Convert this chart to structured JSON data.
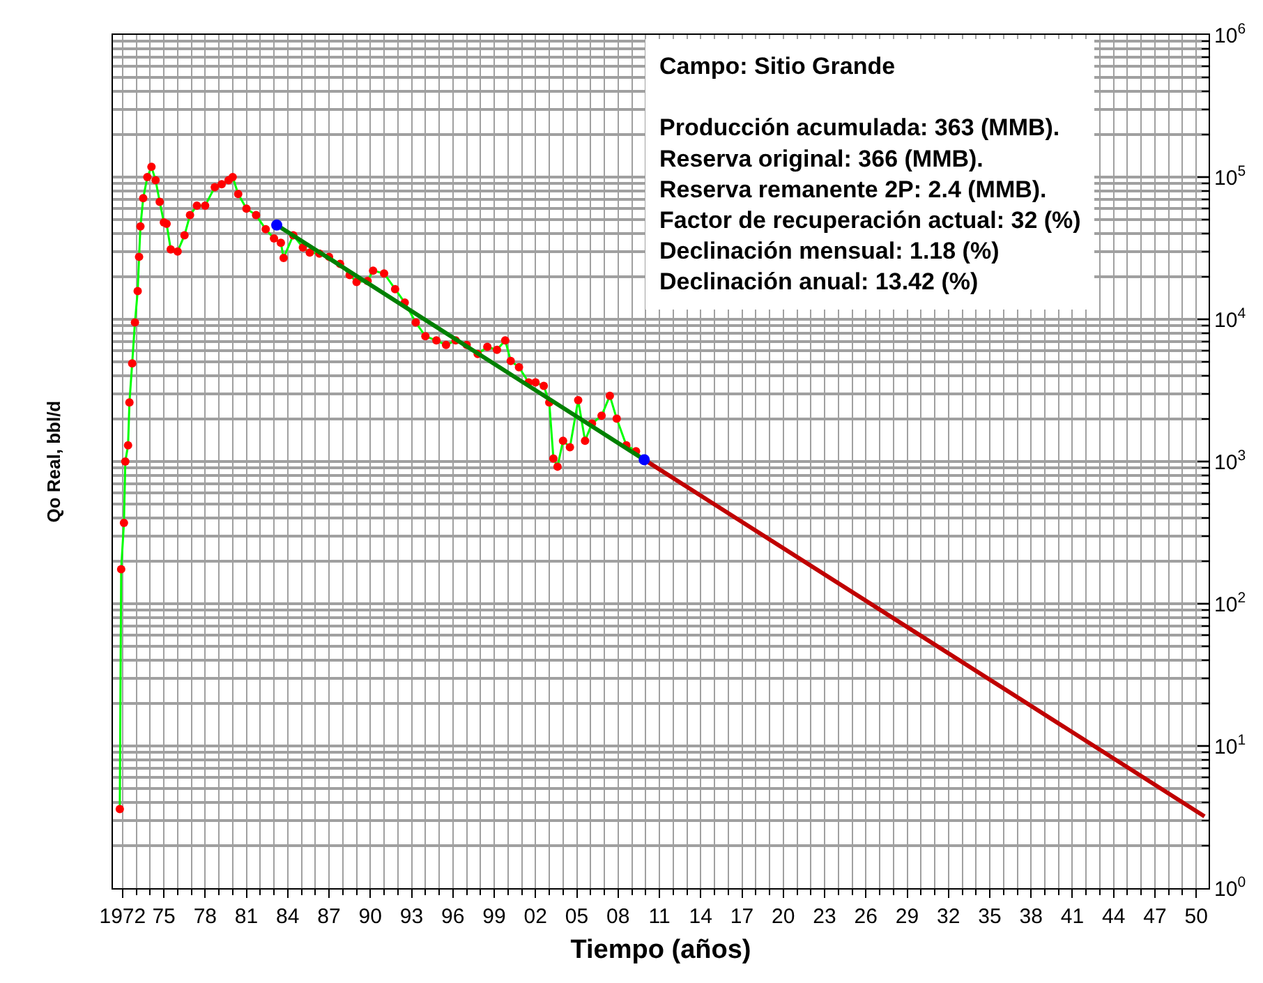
{
  "chart_data": {
    "type": "line",
    "xlabel": "Tiempo (años)",
    "ylabel": "Qo Real, bbl/d",
    "annotations": [
      "Campo: Sitio Grande",
      "Producción acumulada: 363 (MMB).",
      "Reserva original: 366 (MMB).",
      "Reserva remanente 2P: 2.4 (MMB).",
      "Factor de recuperación actual: 32 (%)",
      "Declinación mensual: 1.18 (%)",
      "Declinación anual: 13.42 (%)"
    ],
    "log": true,
    "grid": true,
    "xlim": [
      1971.3,
      2050.9
    ],
    "ylim": [
      1,
      1000000
    ],
    "xticks": [
      {
        "value": 1972,
        "label": "1972"
      },
      {
        "value": 1975,
        "label": "75"
      },
      {
        "value": 1978,
        "label": "78"
      },
      {
        "value": 1981,
        "label": "81"
      },
      {
        "value": 1984,
        "label": "84"
      },
      {
        "value": 1987,
        "label": "87"
      },
      {
        "value": 1990,
        "label": "90"
      },
      {
        "value": 1993,
        "label": "93"
      },
      {
        "value": 1996,
        "label": "96"
      },
      {
        "value": 1999,
        "label": "99"
      },
      {
        "value": 2002,
        "label": "02"
      },
      {
        "value": 2005,
        "label": "05"
      },
      {
        "value": 2008,
        "label": "08"
      },
      {
        "value": 2011,
        "label": "11"
      },
      {
        "value": 2014,
        "label": "14"
      },
      {
        "value": 2017,
        "label": "17"
      },
      {
        "value": 2020,
        "label": "20"
      },
      {
        "value": 2023,
        "label": "23"
      },
      {
        "value": 2026,
        "label": "26"
      },
      {
        "value": 2029,
        "label": "29"
      },
      {
        "value": 2032,
        "label": "32"
      },
      {
        "value": 2035,
        "label": "35"
      },
      {
        "value": 2038,
        "label": "38"
      },
      {
        "value": 2041,
        "label": "41"
      },
      {
        "value": 2044,
        "label": "44"
      },
      {
        "value": 2047,
        "label": "47"
      },
      {
        "value": 2050,
        "label": "50"
      }
    ],
    "yticks": [
      {
        "value": 1,
        "label": "10$^{0}$"
      },
      {
        "value": 10,
        "label": "10$^{1}$"
      },
      {
        "value": 100,
        "label": "10$^{2}$"
      },
      {
        "value": 1000,
        "label": "10$^{3}$"
      },
      {
        "value": 10000,
        "label": "10$^{4}$"
      },
      {
        "value": 100000,
        "label": "10$^{5}$"
      },
      {
        "value": 1000000,
        "label": "10$^{6}$"
      }
    ],
    "series": [
      {
        "color": "#00ff00",
        "marker": "none",
        "x": [
          1971.8,
          1971.9,
          1972.1,
          1972.2,
          1972.4,
          1972.5,
          1972.7,
          1972.9,
          1973.1,
          1973.2,
          1973.3,
          1973.5,
          1973.8,
          1974.1,
          1974.4,
          1974.7,
          1975.0,
          1975.2,
          1975.5,
          1976.0,
          1976.5,
          1976.9,
          1977.4,
          1978.0,
          1978.7,
          1979.2,
          1979.7,
          1980.0,
          1980.4,
          1981.0,
          1981.7,
          1982.4,
          1983.0,
          1983.5,
          1983.7,
          1984.4,
          1985.1,
          1985.6,
          1986.3,
          1987.0,
          1987.8,
          1988.5,
          1989.0,
          1989.8,
          1990.2,
          1991.0,
          1991.8,
          1992.5,
          1993.3,
          1994.0,
          1994.8,
          1995.5,
          1996.2,
          1997.0,
          1997.8,
          1998.5,
          1999.2,
          1999.8,
          2000.2,
          2000.8,
          2001.5,
          2002.0,
          2002.6,
          2003.0,
          2003.3,
          2003.6,
          2004.0,
          2004.5,
          2005.1,
          2005.6,
          2006.1,
          2006.8,
          2007.4,
          2007.9,
          2008.6,
          2009.3
        ],
        "values": [
          3.6,
          175,
          370,
          1000,
          1300,
          2600,
          4900,
          9500,
          15800,
          27500,
          45000,
          71000,
          100000,
          118000,
          95000,
          67000,
          48000,
          47000,
          31000,
          30000,
          39000,
          54000,
          63000,
          63000,
          85000,
          89000,
          95000,
          100000,
          76000,
          60000,
          54000,
          43000,
          37000,
          34500,
          27000,
          39000,
          32000,
          29500,
          29000,
          27500,
          24500,
          20500,
          18300,
          18600,
          22000,
          21000,
          16300,
          13100,
          9500,
          7600,
          7100,
          6600,
          7100,
          6600,
          5700,
          6400,
          6100,
          7100,
          5100,
          4600,
          3600,
          3600,
          3400,
          2600,
          1050,
          920,
          1400,
          1260,
          2700,
          1400,
          1850,
          2100,
          2900,
          2000,
          1300,
          1180
        ]
      },
      {
        "type": "scatter",
        "color": "#ff0000",
        "marker": "circle",
        "x": [
          1971.8,
          1971.9,
          1972.1,
          1972.2,
          1972.4,
          1972.5,
          1972.7,
          1972.9,
          1973.1,
          1973.2,
          1973.3,
          1973.5,
          1973.8,
          1974.1,
          1974.4,
          1974.7,
          1975.0,
          1975.2,
          1975.5,
          1976.0,
          1976.5,
          1976.9,
          1977.4,
          1978.0,
          1978.7,
          1979.2,
          1979.7,
          1980.0,
          1980.4,
          1981.0,
          1981.7,
          1982.4,
          1983.0,
          1983.5,
          1983.7,
          1984.4,
          1985.1,
          1985.6,
          1986.3,
          1987.0,
          1987.8,
          1988.5,
          1989.0,
          1989.8,
          1990.2,
          1991.0,
          1991.8,
          1992.5,
          1993.3,
          1994.0,
          1994.8,
          1995.5,
          1996.2,
          1997.0,
          1997.8,
          1998.5,
          1999.2,
          1999.8,
          2000.2,
          2000.8,
          2001.5,
          2002.0,
          2002.6,
          2003.0,
          2003.3,
          2003.6,
          2004.0,
          2004.5,
          2005.1,
          2005.6,
          2006.1,
          2006.8,
          2007.4,
          2007.9,
          2008.6,
          2009.3
        ],
        "values": [
          3.6,
          175,
          370,
          1000,
          1300,
          2600,
          4900,
          9500,
          15800,
          27500,
          45000,
          71000,
          100000,
          118000,
          95000,
          67000,
          48000,
          47000,
          31000,
          30000,
          39000,
          54000,
          63000,
          63000,
          85000,
          89000,
          95000,
          100000,
          76000,
          60000,
          54000,
          43000,
          37000,
          34500,
          27000,
          39000,
          32000,
          29500,
          29000,
          27500,
          24500,
          20500,
          18300,
          18600,
          22000,
          21000,
          16300,
          13100,
          9500,
          7600,
          7100,
          6600,
          7100,
          6600,
          5700,
          6400,
          6100,
          7100,
          5100,
          4600,
          3600,
          3600,
          3400,
          2600,
          1050,
          920,
          1400,
          1260,
          2700,
          1400,
          1850,
          2100,
          2900,
          2000,
          1300,
          1180
        ]
      },
      {
        "type": "line",
        "color": "#008000",
        "marker": "none",
        "x": [
          1983.2,
          2009.9
        ],
        "values": [
          46000,
          1030
        ]
      },
      {
        "type": "line",
        "color": "#c00000",
        "marker": "none",
        "x": [
          2009.9,
          2050.6
        ],
        "values": [
          1030,
          3.2
        ]
      },
      {
        "type": "scatter",
        "color": "#0000ff",
        "marker": "circle",
        "x": [
          1983.2,
          2009.9
        ],
        "values": [
          46000,
          1030
        ]
      }
    ]
  }
}
